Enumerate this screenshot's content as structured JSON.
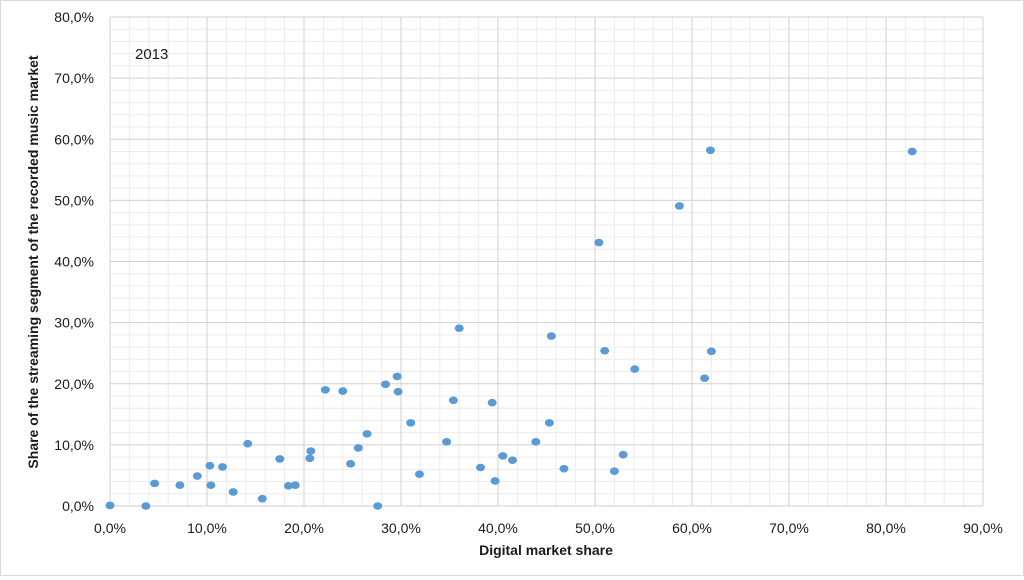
{
  "chart_data": {
    "type": "scatter",
    "xlabel": "Digital market share",
    "ylabel": "Share of the streaming segment of the recorded music market",
    "annotation": "2013",
    "xlim": [
      0,
      0.9
    ],
    "ylim": [
      0,
      0.8
    ],
    "x_ticks": [
      "0,0%",
      "10,0%",
      "20,0%",
      "30,0%",
      "40,0%",
      "50,0%",
      "60,0%",
      "70,0%",
      "80,0%",
      "90,0%"
    ],
    "y_ticks": [
      "0,0%",
      "10,0%",
      "20,0%",
      "30,0%",
      "40,0%",
      "50,0%",
      "60,0%",
      "70,0%",
      "80,0%"
    ],
    "grid": true,
    "legend": "none",
    "marker_color": "#5b9bd5",
    "series": [
      {
        "points": [
          [
            0.0,
            0.001
          ],
          [
            0.037,
            0.0
          ],
          [
            0.046,
            0.037
          ],
          [
            0.072,
            0.034
          ],
          [
            0.09,
            0.049
          ],
          [
            0.103,
            0.066
          ],
          [
            0.104,
            0.034
          ],
          [
            0.116,
            0.064
          ],
          [
            0.127,
            0.023
          ],
          [
            0.142,
            0.102
          ],
          [
            0.157,
            0.012
          ],
          [
            0.175,
            0.077
          ],
          [
            0.184,
            0.033
          ],
          [
            0.191,
            0.034
          ],
          [
            0.206,
            0.078
          ],
          [
            0.207,
            0.09
          ],
          [
            0.222,
            0.19
          ],
          [
            0.24,
            0.188
          ],
          [
            0.248,
            0.069
          ],
          [
            0.256,
            0.095
          ],
          [
            0.265,
            0.118
          ],
          [
            0.276,
            0.0
          ],
          [
            0.284,
            0.199
          ],
          [
            0.296,
            0.212
          ],
          [
            0.297,
            0.187
          ],
          [
            0.31,
            0.136
          ],
          [
            0.319,
            0.052
          ],
          [
            0.347,
            0.105
          ],
          [
            0.354,
            0.173
          ],
          [
            0.36,
            0.291
          ],
          [
            0.382,
            0.063
          ],
          [
            0.394,
            0.169
          ],
          [
            0.397,
            0.041
          ],
          [
            0.405,
            0.082
          ],
          [
            0.415,
            0.075
          ],
          [
            0.439,
            0.105
          ],
          [
            0.453,
            0.136
          ],
          [
            0.455,
            0.278
          ],
          [
            0.468,
            0.061
          ],
          [
            0.504,
            0.431
          ],
          [
            0.51,
            0.254
          ],
          [
            0.52,
            0.057
          ],
          [
            0.529,
            0.084
          ],
          [
            0.541,
            0.224
          ],
          [
            0.587,
            0.491
          ],
          [
            0.613,
            0.209
          ],
          [
            0.619,
            0.582
          ],
          [
            0.62,
            0.253
          ],
          [
            0.827,
            0.58
          ]
        ]
      }
    ]
  }
}
